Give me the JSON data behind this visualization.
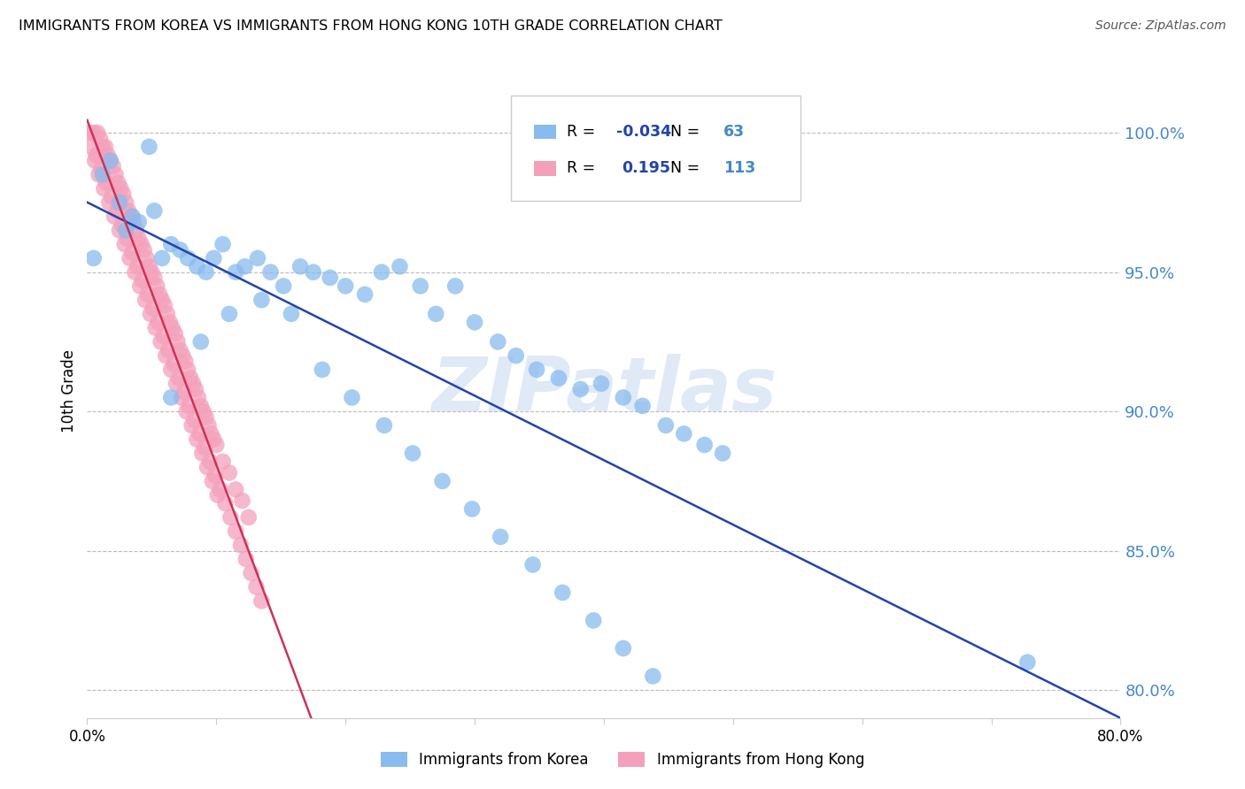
{
  "title": "IMMIGRANTS FROM KOREA VS IMMIGRANTS FROM HONG KONG 10TH GRADE CORRELATION CHART",
  "source": "Source: ZipAtlas.com",
  "ylabel": "10th Grade",
  "x_range": [
    0.0,
    0.8
  ],
  "y_range": [
    79.0,
    102.5
  ],
  "y_ticks": [
    80.0,
    85.0,
    90.0,
    95.0,
    100.0
  ],
  "korea_R": -0.034,
  "korea_N": 63,
  "hk_R": 0.195,
  "hk_N": 113,
  "korea_color": "#88BBEE",
  "hk_color": "#F4A0BB",
  "trend_korea_color": "#2244AA",
  "trend_hk_color": "#CC3355",
  "right_tick_color": "#4488CC",
  "watermark_color": "#C8D8F0",
  "korea_x": [
    0.005,
    0.012,
    0.018,
    0.025,
    0.03,
    0.035,
    0.04,
    0.048,
    0.052,
    0.058,
    0.065,
    0.072,
    0.078,
    0.085,
    0.092,
    0.098,
    0.105,
    0.115,
    0.122,
    0.132,
    0.142,
    0.152,
    0.165,
    0.175,
    0.188,
    0.2,
    0.215,
    0.228,
    0.242,
    0.258,
    0.27,
    0.285,
    0.3,
    0.318,
    0.332,
    0.348,
    0.365,
    0.382,
    0.398,
    0.415,
    0.43,
    0.448,
    0.462,
    0.478,
    0.492,
    0.065,
    0.088,
    0.11,
    0.135,
    0.158,
    0.182,
    0.205,
    0.23,
    0.252,
    0.275,
    0.298,
    0.32,
    0.345,
    0.368,
    0.392,
    0.415,
    0.438,
    0.728
  ],
  "korea_y": [
    95.5,
    98.5,
    99.0,
    97.5,
    96.5,
    97.0,
    96.8,
    99.5,
    97.2,
    95.5,
    96.0,
    95.8,
    95.5,
    95.2,
    95.0,
    95.5,
    96.0,
    95.0,
    95.2,
    95.5,
    95.0,
    94.5,
    95.2,
    95.0,
    94.8,
    94.5,
    94.2,
    95.0,
    95.2,
    94.5,
    93.5,
    94.5,
    93.2,
    92.5,
    92.0,
    91.5,
    91.2,
    90.8,
    91.0,
    90.5,
    90.2,
    89.5,
    89.2,
    88.8,
    88.5,
    90.5,
    92.5,
    93.5,
    94.0,
    93.5,
    91.5,
    90.5,
    89.5,
    88.5,
    87.5,
    86.5,
    85.5,
    84.5,
    83.5,
    82.5,
    81.5,
    80.5,
    81.0
  ],
  "hk_x": [
    0.002,
    0.005,
    0.008,
    0.01,
    0.012,
    0.014,
    0.016,
    0.018,
    0.02,
    0.022,
    0.024,
    0.026,
    0.028,
    0.03,
    0.032,
    0.034,
    0.036,
    0.038,
    0.04,
    0.042,
    0.044,
    0.046,
    0.048,
    0.05,
    0.052,
    0.054,
    0.056,
    0.058,
    0.06,
    0.062,
    0.064,
    0.066,
    0.068,
    0.07,
    0.072,
    0.074,
    0.076,
    0.078,
    0.08,
    0.082,
    0.084,
    0.086,
    0.088,
    0.09,
    0.092,
    0.094,
    0.096,
    0.098,
    0.1,
    0.105,
    0.11,
    0.115,
    0.12,
    0.125,
    0.003,
    0.006,
    0.009,
    0.013,
    0.017,
    0.021,
    0.025,
    0.029,
    0.033,
    0.037,
    0.041,
    0.045,
    0.049,
    0.053,
    0.057,
    0.061,
    0.065,
    0.069,
    0.073,
    0.077,
    0.081,
    0.085,
    0.089,
    0.093,
    0.097,
    0.101,
    0.007,
    0.011,
    0.015,
    0.019,
    0.023,
    0.027,
    0.031,
    0.035,
    0.039,
    0.043,
    0.047,
    0.051,
    0.055,
    0.059,
    0.063,
    0.067,
    0.071,
    0.075,
    0.079,
    0.083,
    0.087,
    0.091,
    0.095,
    0.099,
    0.103,
    0.107,
    0.111,
    0.115,
    0.119,
    0.123,
    0.127,
    0.131,
    0.135
  ],
  "hk_y": [
    100.0,
    100.0,
    100.0,
    99.8,
    99.5,
    99.5,
    99.2,
    99.0,
    98.8,
    98.5,
    98.2,
    98.0,
    97.8,
    97.5,
    97.2,
    97.0,
    96.8,
    96.5,
    96.2,
    96.0,
    95.8,
    95.5,
    95.2,
    95.0,
    94.8,
    94.5,
    94.2,
    94.0,
    93.8,
    93.5,
    93.2,
    93.0,
    92.8,
    92.5,
    92.2,
    92.0,
    91.8,
    91.5,
    91.2,
    91.0,
    90.8,
    90.5,
    90.2,
    90.0,
    89.8,
    89.5,
    89.2,
    89.0,
    88.8,
    88.2,
    87.8,
    87.2,
    86.8,
    86.2,
    99.5,
    99.0,
    98.5,
    98.0,
    97.5,
    97.0,
    96.5,
    96.0,
    95.5,
    95.0,
    94.5,
    94.0,
    93.5,
    93.0,
    92.5,
    92.0,
    91.5,
    91.0,
    90.5,
    90.0,
    89.5,
    89.0,
    88.5,
    88.0,
    87.5,
    87.0,
    99.2,
    98.7,
    98.2,
    97.7,
    97.2,
    96.7,
    96.2,
    95.7,
    95.2,
    94.7,
    94.2,
    93.7,
    93.2,
    92.7,
    92.2,
    91.7,
    91.2,
    90.7,
    90.2,
    89.7,
    89.2,
    88.7,
    88.2,
    87.7,
    87.2,
    86.7,
    86.2,
    85.7,
    85.2,
    84.7,
    84.2,
    83.7,
    83.2
  ]
}
